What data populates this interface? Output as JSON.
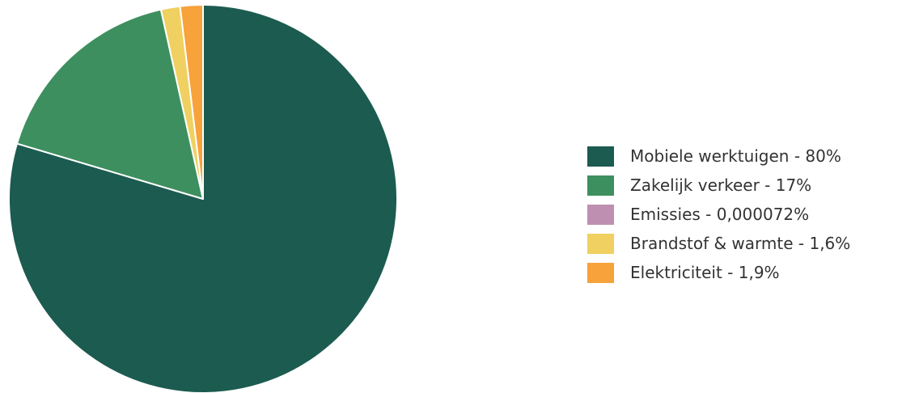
{
  "chart_data": {
    "type": "pie",
    "title": "",
    "slices": [
      {
        "label": "Mobiele werktuigen",
        "value": 80,
        "display": "80%",
        "color": "#1c5b50"
      },
      {
        "label": "Zakelijk verkeer",
        "value": 17,
        "display": "17%",
        "color": "#3e8f5f"
      },
      {
        "label": "Emissies",
        "value": 7.2e-05,
        "display": "0,000072%",
        "color": "#bf8fb1"
      },
      {
        "label": "Brandstof & warmte",
        "value": 1.6,
        "display": "1,6%",
        "color": "#f0d060"
      },
      {
        "label": "Elektriciteit",
        "value": 1.9,
        "display": "1,9%",
        "color": "#f7a23b"
      }
    ],
    "legend": {
      "position": "right",
      "items": [
        "Mobiele werktuigen - 80%",
        "Zakelijk verkeer - 17%",
        "Emissies - 0,000072%",
        "Brandstof & warmte - 1,6%",
        "Elektriciteit - 1,9%"
      ]
    }
  }
}
